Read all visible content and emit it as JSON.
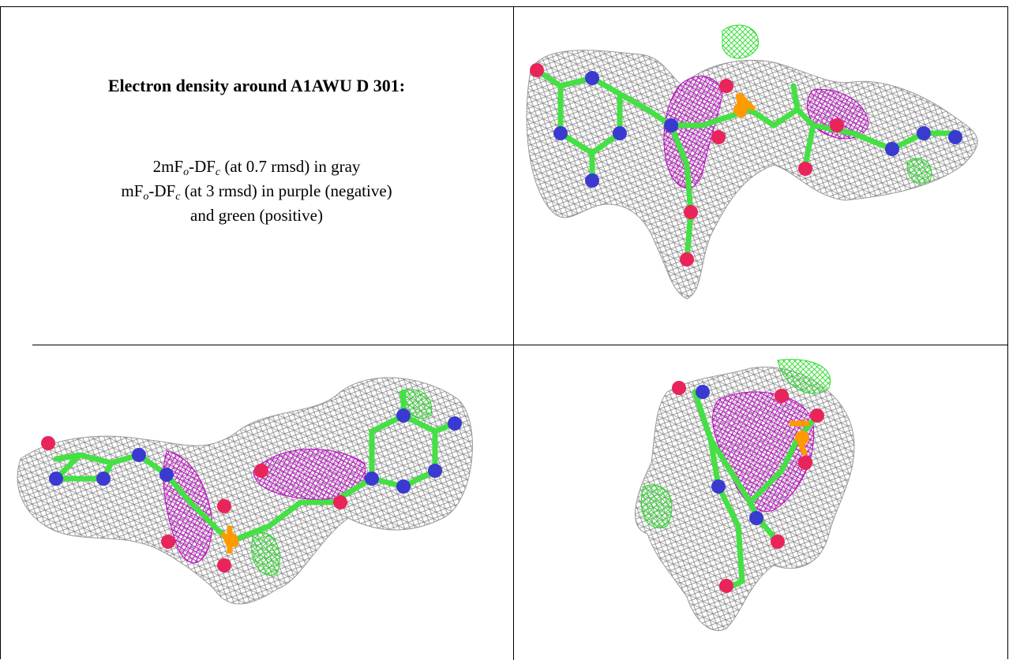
{
  "title": "Electron density around A1AWU D 301:",
  "caption": [
    [
      "2mF",
      "o",
      "-DF",
      "c",
      " (at 0.7 rmsd) in gray"
    ],
    [
      "mF",
      "o",
      "-DF",
      "c",
      " (at 3 rmsd) in purple (negative)"
    ],
    [
      "and green (positive)"
    ]
  ]
}
